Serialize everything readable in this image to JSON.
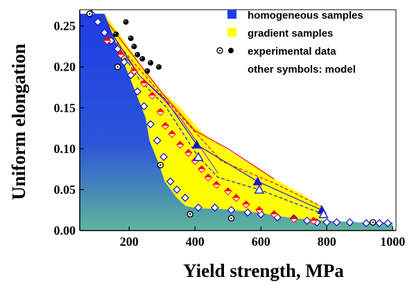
{
  "chart_data": {
    "type": "scatter",
    "xlabel": "Yield strength, MPa",
    "ylabel": "Uniform elongation",
    "xlim": [
      50,
      1010
    ],
    "ylim": [
      0,
      0.27
    ],
    "xticks": [
      200,
      400,
      600,
      800,
      1000
    ],
    "yticks": [
      0.0,
      0.05,
      0.1,
      0.15,
      0.2,
      0.25
    ],
    "ytick_labels": [
      "0.00",
      "0.05",
      "0.10",
      "0.15",
      "0.20",
      "0.25"
    ],
    "legend_position": "top-right",
    "legend": [
      {
        "label": "homogeneous samples",
        "symbol": "blue-square"
      },
      {
        "label": "gradient samples",
        "symbol": "yellow-square"
      },
      {
        "label": "experimental data",
        "symbol": "circles"
      },
      {
        "label": "other symbols: model",
        "symbol": "none"
      }
    ],
    "colors": {
      "homogeneous_top": "#1f3de6",
      "homogeneous_bottom": "#5fb59a",
      "gradient_fill": "#ffff00",
      "red": "#ff0000",
      "blue": "#1515d0",
      "purple": "#9b2bd8"
    },
    "regions": {
      "homogeneous": {
        "boundary": [
          [
            50,
            0.265
          ],
          [
            125,
            0.265
          ],
          [
            145,
            0.248
          ],
          [
            165,
            0.23
          ],
          [
            185,
            0.212
          ],
          [
            200,
            0.19
          ],
          [
            215,
            0.175
          ],
          [
            235,
            0.155
          ],
          [
            250,
            0.138
          ],
          [
            262,
            0.11
          ],
          [
            292,
            0.08
          ],
          [
            308,
            0.06
          ],
          [
            345,
            0.04
          ],
          [
            372,
            0.03
          ],
          [
            410,
            0.027
          ],
          [
            460,
            0.027
          ],
          [
            520,
            0.025
          ],
          [
            590,
            0.022
          ],
          [
            700,
            0.015
          ],
          [
            800,
            0.012
          ],
          [
            900,
            0.01
          ],
          [
            1000,
            0.01
          ],
          [
            1000,
            0
          ],
          [
            50,
            0
          ]
        ]
      },
      "gradient": {
        "upper": [
          [
            125,
            0.265
          ],
          [
            180,
            0.235
          ],
          [
            240,
            0.2
          ],
          [
            300,
            0.17
          ],
          [
            360,
            0.148
          ],
          [
            420,
            0.12
          ],
          [
            500,
            0.098
          ],
          [
            560,
            0.083
          ],
          [
            640,
            0.063
          ],
          [
            700,
            0.05
          ],
          [
            790,
            0.028
          ]
        ],
        "lower": [
          [
            790,
            0.012
          ],
          [
            700,
            0.015
          ],
          [
            590,
            0.022
          ],
          [
            520,
            0.025
          ],
          [
            460,
            0.027
          ],
          [
            410,
            0.027
          ],
          [
            372,
            0.03
          ],
          [
            345,
            0.04
          ],
          [
            308,
            0.06
          ],
          [
            292,
            0.08
          ],
          [
            262,
            0.11
          ],
          [
            250,
            0.138
          ]
        ]
      }
    },
    "series": [
      {
        "kind": "homogeneous_model",
        "marker": "diamond-open",
        "color": "#1515d0",
        "x": [
          85,
          105,
          125,
          145,
          165,
          185,
          205,
          225,
          245,
          265,
          285,
          305,
          325,
          345,
          370,
          410,
          460,
          510,
          560,
          600,
          650,
          700,
          740,
          770,
          800,
          830,
          870,
          920,
          960,
          985
        ],
        "y": [
          0.265,
          0.255,
          0.242,
          0.232,
          0.222,
          0.206,
          0.19,
          0.17,
          0.152,
          0.13,
          0.11,
          0.09,
          0.06,
          0.05,
          0.04,
          0.028,
          0.028,
          0.025,
          0.022,
          0.02,
          0.016,
          0.015,
          0.012,
          0.01,
          0.01,
          0.01,
          0.01,
          0.009,
          0.009,
          0.009
        ]
      },
      {
        "kind": "gradient_model_red",
        "marker": "diamond-half",
        "color": "#ff0000",
        "x": [
          133,
          175,
          215,
          245,
          270,
          295,
          310,
          330,
          355,
          380,
          400,
          420,
          440,
          465,
          500,
          525,
          555,
          595,
          640,
          700,
          760
        ],
        "y": [
          0.232,
          0.215,
          0.195,
          0.18,
          0.165,
          0.145,
          0.128,
          0.118,
          0.105,
          0.095,
          0.085,
          0.075,
          0.065,
          0.056,
          0.048,
          0.04,
          0.032,
          0.025,
          0.02,
          0.014,
          0.012
        ]
      },
      {
        "kind": "model_triangles_solid",
        "marker": "triangle-filled",
        "color": "#1515d0",
        "x": [
          405,
          590,
          785
        ],
        "y": [
          0.105,
          0.06,
          0.025
        ]
      },
      {
        "kind": "model_triangles_open",
        "marker": "triangle-open",
        "color": "#1515d0",
        "x": [
          410,
          595,
          790
        ],
        "y": [
          0.09,
          0.05,
          0.02
        ]
      },
      {
        "kind": "experimental_black",
        "marker": "circle-filled",
        "color": "#000000",
        "x": [
          160,
          190,
          205,
          215,
          225,
          240,
          255,
          265,
          290
        ],
        "y": [
          0.24,
          0.255,
          0.235,
          0.225,
          0.215,
          0.21,
          0.195,
          0.205,
          0.2
        ]
      },
      {
        "kind": "experimental_open",
        "marker": "circle-dotted",
        "color": "#000000",
        "x": [
          80,
          165,
          295,
          385,
          510,
          940
        ],
        "y": [
          0.265,
          0.2,
          0.08,
          0.02,
          0.015,
          0.01
        ]
      }
    ]
  }
}
